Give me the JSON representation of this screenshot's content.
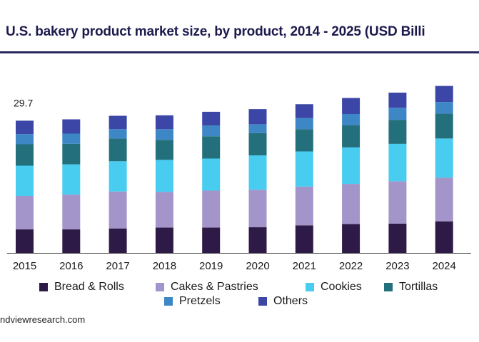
{
  "title": "U.S. bakery product market size, by product, 2014 - 2025 (USD Billi",
  "source": "ndviewresearch.com",
  "chart_data": {
    "type": "bar",
    "stacked": true,
    "categories": [
      "2015",
      "2016",
      "2017",
      "2018",
      "2019",
      "2020",
      "2021",
      "2022",
      "2023",
      "2024"
    ],
    "series": [
      {
        "name": "Bread & Rolls",
        "color": "#2e1a47",
        "values": [
          5.3,
          5.3,
          5.5,
          5.7,
          5.7,
          5.8,
          6.2,
          6.5,
          6.6,
          7.1
        ]
      },
      {
        "name": "Cakes & Pastries",
        "color": "#a395c9",
        "values": [
          7.5,
          7.8,
          8.3,
          8.0,
          8.3,
          8.4,
          8.7,
          9.0,
          9.5,
          9.8
        ]
      },
      {
        "name": "Cookies",
        "color": "#48ccf0",
        "values": [
          6.8,
          6.8,
          6.8,
          7.2,
          7.2,
          7.7,
          7.9,
          8.2,
          8.4,
          8.8
        ]
      },
      {
        "name": "Tortillas",
        "color": "#236f7c",
        "values": [
          4.8,
          4.6,
          5.1,
          4.5,
          5.0,
          5.0,
          5.0,
          5.0,
          5.4,
          5.6
        ]
      },
      {
        "name": "Pretzels",
        "color": "#3d87c6",
        "values": [
          2.3,
          2.3,
          2.1,
          2.4,
          2.4,
          2.0,
          2.5,
          2.5,
          2.7,
          2.6
        ]
      },
      {
        "name": "Others",
        "color": "#3c46a6",
        "values": [
          3.0,
          3.2,
          3.0,
          3.1,
          3.1,
          3.4,
          3.1,
          3.6,
          3.4,
          3.6
        ]
      }
    ],
    "data_labels": [
      {
        "category": "2015",
        "text": "29.7"
      }
    ],
    "ylim": [
      0,
      36
    ],
    "grid": false,
    "legend": "bottom"
  }
}
